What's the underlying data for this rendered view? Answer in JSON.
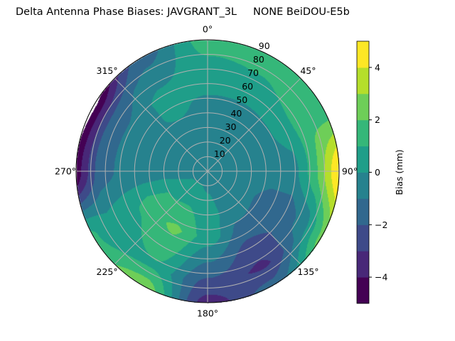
{
  "chart_data": {
    "type": "heatmap",
    "subtype": "polar-filled-contour",
    "title": "Delta Antenna Phase Biases: JAVGRANT_3L     NONE BeiDOU-E5b",
    "theta_direction": "clockwise",
    "theta_zero": "top",
    "theta_ticks": [
      "0°",
      "45°",
      "90°",
      "135°",
      "180°",
      "225°",
      "270°",
      "315°"
    ],
    "r_ticks": [
      "10",
      "20",
      "30",
      "40",
      "50",
      "60",
      "70",
      "80",
      "90"
    ],
    "r_range": [
      0,
      90
    ],
    "grid": true,
    "colormap": "viridis",
    "colorbar": {
      "label": "Bias (mm)",
      "levels": [
        -5,
        -4,
        -3,
        -2,
        -1,
        0,
        1,
        2,
        3,
        4,
        5
      ],
      "ticks": [
        "4",
        "2",
        "0",
        "−2",
        "−4"
      ],
      "tick_values": [
        4,
        2,
        0,
        -2,
        -4
      ],
      "colors": [
        "#440154",
        "#482878",
        "#3e4a89",
        "#31688e",
        "#26828e",
        "#1f9e89",
        "#35b779",
        "#6ece58",
        "#b5de2b",
        "#fde725"
      ]
    },
    "azimuths_deg": [
      0,
      30,
      60,
      90,
      120,
      150,
      180,
      210,
      240,
      270,
      300,
      330
    ],
    "zeniths_deg": [
      0,
      15,
      30,
      45,
      60,
      75,
      90
    ],
    "values_mm": [
      [
        -0.5,
        -0.5,
        -0.5,
        -0.5,
        -0.5,
        -0.5,
        -0.5,
        -0.5,
        -0.5,
        -0.5,
        -0.5,
        -0.5
      ],
      [
        -0.5,
        -0.5,
        -0.5,
        -0.5,
        -0.5,
        -0.4,
        0.0,
        0.3,
        0.2,
        -0.5,
        -0.5,
        -0.5
      ],
      [
        -0.5,
        -0.5,
        -0.5,
        -0.5,
        -0.8,
        -0.5,
        0.5,
        1.2,
        1.0,
        -0.3,
        -0.5,
        -0.5
      ],
      [
        -0.3,
        -0.3,
        -0.3,
        -0.7,
        -1.3,
        -1.3,
        0.6,
        2.2,
        1.3,
        -0.5,
        -0.5,
        0.2
      ],
      [
        0.3,
        0.3,
        0.5,
        -0.3,
        -1.6,
        -2.5,
        -0.8,
        1.5,
        0.8,
        -0.8,
        -0.8,
        0.3
      ],
      [
        0.8,
        1.0,
        1.8,
        2.0,
        -0.5,
        -3.2,
        -2.2,
        0.8,
        0.3,
        -1.5,
        -1.8,
        -0.5
      ],
      [
        1.5,
        1.8,
        1.5,
        5.2,
        2.5,
        -1.5,
        -3.5,
        2.8,
        1.2,
        -4.7,
        -5.3,
        -1.5
      ]
    ]
  }
}
